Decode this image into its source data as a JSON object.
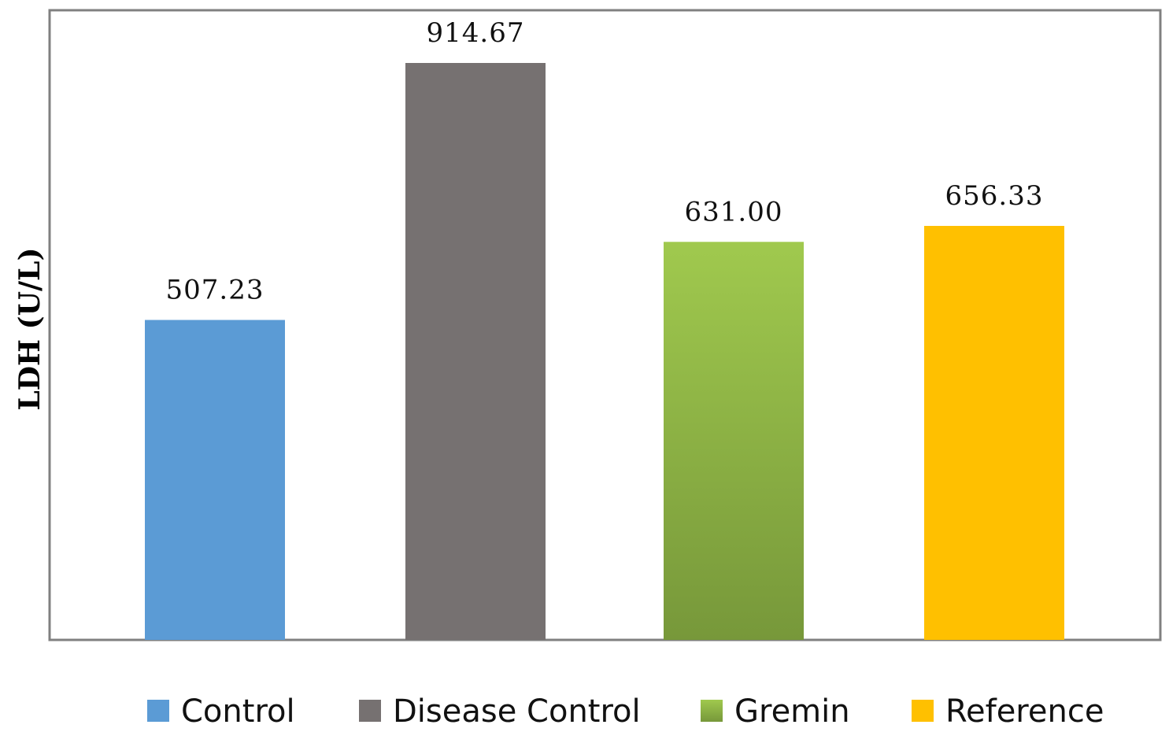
{
  "chart_data": {
    "type": "bar",
    "title": "",
    "xlabel": "",
    "ylabel": "LDH (U/L)",
    "categories": [
      "Control",
      "Disease Control",
      "Gremin",
      "Reference"
    ],
    "values": [
      507.23,
      914.67,
      631.0,
      656.33
    ],
    "value_labels": [
      "507.23",
      "914.67",
      "631.00",
      "656.33"
    ],
    "ylim": [
      0,
      1000
    ],
    "grid": false,
    "legend": {
      "position": "bottom",
      "entries": [
        "Control",
        "Disease Control",
        "Gremin",
        "Reference"
      ]
    },
    "colors": {
      "Control": "#5B9BD5",
      "Disease Control": "#767171",
      "Gremin_top": "#A0C94E",
      "Gremin_bottom": "#77983A",
      "Reference": "#FFC000",
      "frame": "#808080"
    }
  }
}
